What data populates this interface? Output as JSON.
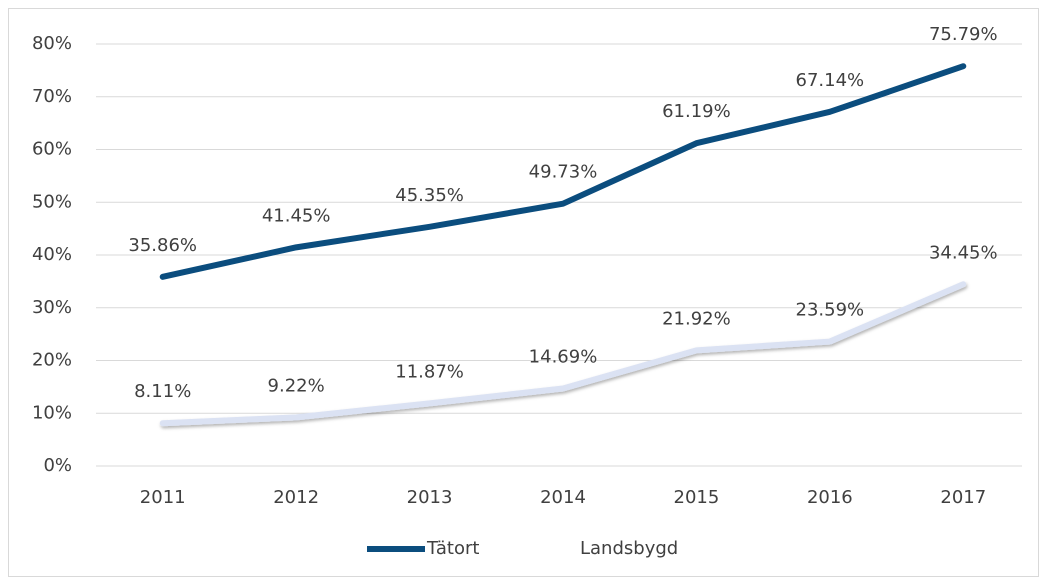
{
  "chart_data": {
    "type": "line",
    "categories": [
      "2011",
      "2012",
      "2013",
      "2014",
      "2015",
      "2016",
      "2017"
    ],
    "series": [
      {
        "name": "Tätort",
        "color": "#0b4d7e",
        "values": [
          35.86,
          41.45,
          45.35,
          49.73,
          61.19,
          67.14,
          75.79
        ],
        "value_labels": [
          "35.86%",
          "41.45%",
          "45.35%",
          "49.73%",
          "61.19%",
          "67.14%",
          "75.79%"
        ]
      },
      {
        "name": "Landsbygd",
        "color": "#dbe2f3",
        "values": [
          8.11,
          9.22,
          11.87,
          14.69,
          21.92,
          23.59,
          34.45
        ],
        "value_labels": [
          "8.11%",
          "9.22%",
          "11.87%",
          "14.69%",
          "21.92%",
          "23.59%",
          "34.45%"
        ]
      }
    ],
    "ylim": [
      0,
      80
    ],
    "yticks": [
      {
        "value": 0,
        "label": "0%"
      },
      {
        "value": 10,
        "label": "10%"
      },
      {
        "value": 20,
        "label": "20%"
      },
      {
        "value": 30,
        "label": "30%"
      },
      {
        "value": 40,
        "label": "40%"
      },
      {
        "value": 50,
        "label": "50%"
      },
      {
        "value": 60,
        "label": "60%"
      },
      {
        "value": 70,
        "label": "70%"
      },
      {
        "value": 80,
        "label": "80%"
      }
    ],
    "grid": true,
    "legend": "bottom"
  }
}
